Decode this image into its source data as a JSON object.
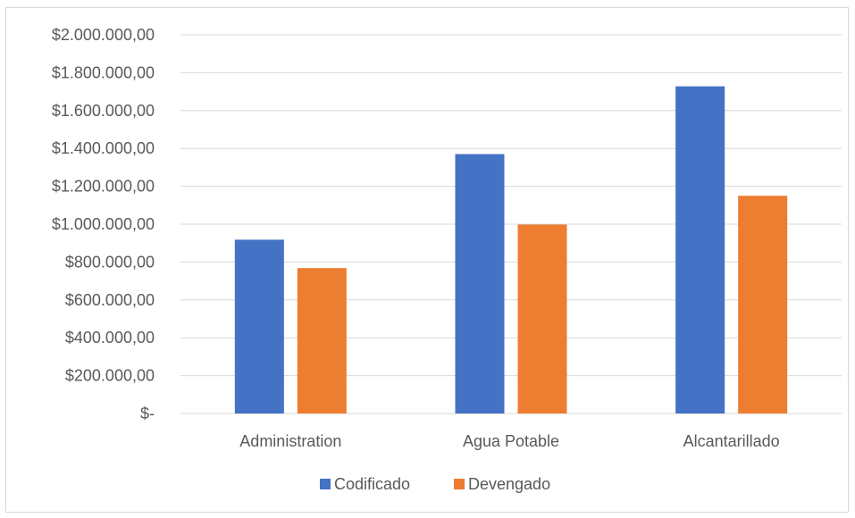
{
  "chart_data": {
    "type": "bar",
    "categories": [
      "Administration",
      "Agua Potable",
      "Alcantarillado"
    ],
    "series": [
      {
        "name": "Codificado",
        "color": "#4472c4",
        "values": [
          918000,
          1370000,
          1728000
        ]
      },
      {
        "name": "Devengado",
        "color": "#ed7d31",
        "values": [
          768000,
          998000,
          1150000
        ]
      }
    ],
    "y_ticks": [
      {
        "value": 0,
        "label": "$-"
      },
      {
        "value": 200000,
        "label": "$200.000,00"
      },
      {
        "value": 400000,
        "label": "$400.000,00"
      },
      {
        "value": 600000,
        "label": "$600.000,00"
      },
      {
        "value": 800000,
        "label": "$800.000,00"
      },
      {
        "value": 1000000,
        "label": "$1.000.000,00"
      },
      {
        "value": 1200000,
        "label": "$1.200.000,00"
      },
      {
        "value": 1400000,
        "label": "$1.400.000,00"
      },
      {
        "value": 1600000,
        "label": "$1.600.000,00"
      },
      {
        "value": 1800000,
        "label": "$1.800.000,00"
      },
      {
        "value": 2000000,
        "label": "$2.000.000,00"
      }
    ],
    "ylim": [
      0,
      2000000
    ],
    "grid": true,
    "legend": "bottom",
    "gridline_color": "#d9d9d9"
  }
}
